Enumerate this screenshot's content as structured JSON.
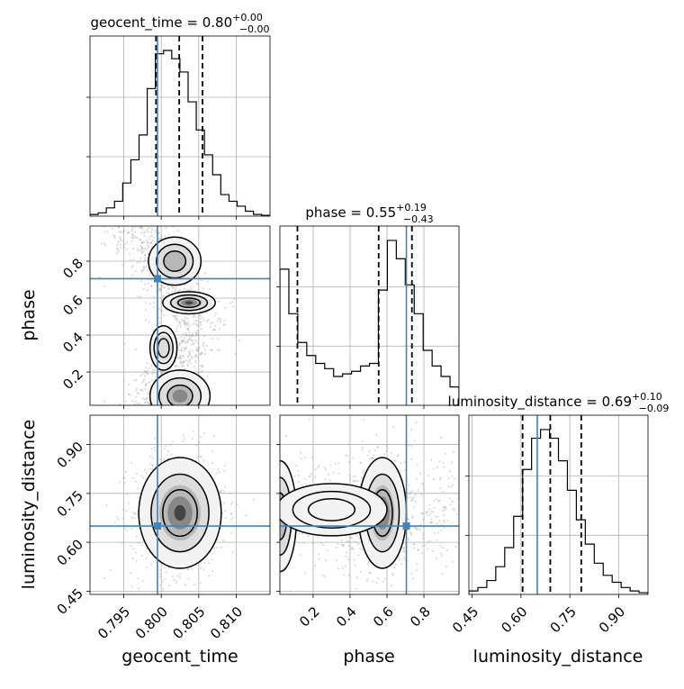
{
  "chart_data": {
    "type": "corner",
    "parameters": [
      "geocent_time",
      "phase",
      "luminosity_distance"
    ],
    "truths": {
      "geocent_time": 0.7995,
      "phase": 0.705,
      "luminosity_distance": 0.65
    },
    "colors": {
      "truth": "#4682b4",
      "line": "#000000",
      "grid": "#b0b0b0"
    },
    "titles": {
      "geocent_time": {
        "label": "geocent_time",
        "median": "0.80",
        "plus": "+0.00",
        "minus": "−0.00"
      },
      "phase": {
        "label": "phase",
        "median": "0.55",
        "plus": "+0.19",
        "minus": "−0.43"
      },
      "luminosity_distance": {
        "label": "luminosity_distance",
        "median": "0.69",
        "plus": "+0.10",
        "minus": "−0.09"
      }
    },
    "axes": {
      "geocent_time": {
        "range": [
          0.7905,
          0.8145
        ],
        "ticks": [
          0.795,
          0.8,
          0.805,
          0.81
        ],
        "tick_labels": [
          "0.795",
          "0.800",
          "0.805",
          "0.810"
        ]
      },
      "phase": {
        "range": [
          0.02,
          0.99
        ],
        "ticks": [
          0.2,
          0.4,
          0.6,
          0.8
        ],
        "tick_labels": [
          "0.2",
          "0.4",
          "0.6",
          "0.8"
        ]
      },
      "luminosity_distance": {
        "range": [
          0.44,
          0.99
        ],
        "ticks": [
          0.45,
          0.6,
          0.75,
          0.9
        ],
        "tick_labels": [
          "0.45",
          "0.60",
          "0.75",
          "0.90"
        ]
      }
    },
    "histograms": {
      "geocent_time": {
        "quantiles": [
          0.7993,
          0.8024,
          0.8055
        ],
        "counts": [
          0.01,
          0.02,
          0.05,
          0.09,
          0.2,
          0.34,
          0.49,
          0.77,
          0.98,
          1.0,
          0.95,
          0.87,
          0.69,
          0.52,
          0.37,
          0.25,
          0.13,
          0.09,
          0.06,
          0.03,
          0.01,
          0.005
        ],
        "start": 0.7905,
        "bin": 0.00109
      },
      "phase": {
        "quantiles": [
          0.115,
          0.555,
          0.735
        ],
        "counts": [
          0.52,
          0.35,
          0.24,
          0.19,
          0.16,
          0.14,
          0.11,
          0.12,
          0.13,
          0.15,
          0.16,
          0.44,
          0.63,
          0.56,
          0.46,
          0.35,
          0.21,
          0.15,
          0.11,
          0.07
        ],
        "start": 0.02,
        "bin": 0.0485
      },
      "luminosity_distance": {
        "quantiles": [
          0.605,
          0.69,
          0.785
        ],
        "counts": [
          0.02,
          0.04,
          0.08,
          0.16,
          0.27,
          0.45,
          0.72,
          0.9,
          0.95,
          0.9,
          0.77,
          0.6,
          0.43,
          0.29,
          0.18,
          0.11,
          0.07,
          0.04,
          0.02,
          0.01
        ],
        "start": 0.44,
        "bin": 0.0275
      }
    },
    "pairs": [
      {
        "x": "geocent_time",
        "y": "phase"
      },
      {
        "x": "geocent_time",
        "y": "luminosity_distance"
      },
      {
        "x": "phase",
        "y": "luminosity_distance"
      }
    ]
  }
}
